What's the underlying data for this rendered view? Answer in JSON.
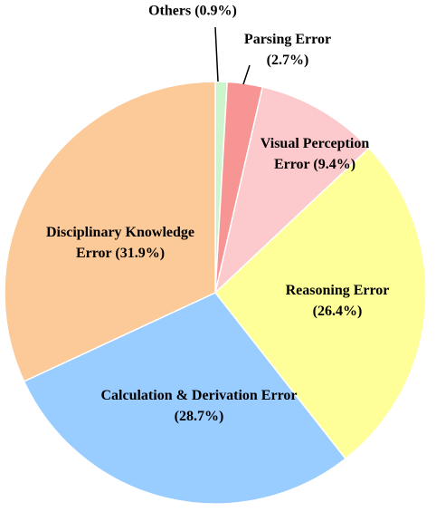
{
  "chart_data": {
    "type": "pie",
    "categories": [
      "Others (0.9%)",
      "Parsing Error (2.7%)",
      "Visual Perception Error (9.4%)",
      "Reasoning Error (26.4%)",
      "Calculation & Derivation Error (28.7%)",
      "Disciplinary Knowledge Error (31.9%)"
    ],
    "values": [
      0.9,
      2.7,
      9.4,
      26.4,
      28.7,
      31.9
    ],
    "colors": [
      "#ccf5cc",
      "#f79595",
      "#fcc9cc",
      "#ffff99",
      "#99ccff",
      "#fcca99"
    ]
  }
}
